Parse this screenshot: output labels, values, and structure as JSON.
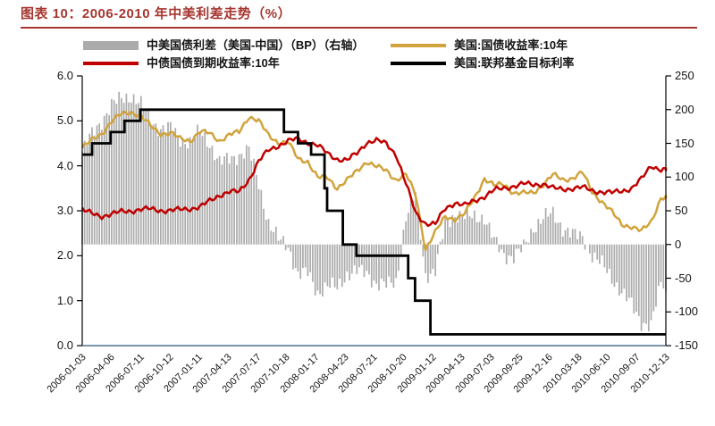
{
  "header": {
    "title": "图表 10：2006-2010 年中美利差走势（%）",
    "accent_color": "#A6362F"
  },
  "legend": [
    {
      "label": "中美国债利差（美国-中国）（BP）（右轴）",
      "type": "bar",
      "color": "#ABABAB"
    },
    {
      "label": "美国:国债收益率:10年",
      "type": "line",
      "color": "#D1A33C"
    },
    {
      "label": "中债国债到期收益率:10年",
      "type": "line",
      "color": "#C00000"
    },
    {
      "label": "美国:联邦基金目标利率",
      "type": "step",
      "color": "#000000"
    }
  ],
  "chart_data": {
    "type": "bar",
    "subtype": "dual-axis combo: bars (right axis, BP) + 3 lines (left axis, %)",
    "title": "2006-2010 年中美利差走势（%）",
    "start_month": "2006-01",
    "interval": "monthly anchors, Jan 2006 - Dec 2010",
    "grid": "off",
    "legend_position": "top",
    "x_tick_labels": [
      "2006-01-03",
      "2006-04-06",
      "2006-07-11",
      "2006-10-12",
      "2007-01-11",
      "2007-04-13",
      "2007-07-17",
      "2007-10-18",
      "2008-01-17",
      "2008-04-23",
      "2008-07-21",
      "2008-10-20",
      "2009-01-12",
      "2009-04-13",
      "2009-07-03",
      "2009-09-25",
      "2009-12-16",
      "2010-03-18",
      "2010-06-10",
      "2010-09-07",
      "2010-12-13"
    ],
    "left_axis": {
      "min": 0,
      "max": 6,
      "ticks": [
        "0.0",
        "1.0",
        "2.0",
        "3.0",
        "4.0",
        "5.0",
        "6.0"
      ]
    },
    "right_axis": {
      "min": -150,
      "max": 250,
      "ticks": [
        "250",
        "200",
        "150",
        "100",
        "50",
        "0",
        "-50",
        "-100",
        "-150"
      ]
    },
    "baseline_color": "#4F7291",
    "series": [
      {
        "name": "中美国债利差（美国-中国）（BP）（右轴）",
        "type": "bar",
        "axis": "right",
        "color": "#ABABAB",
        "monthly_values_bp": [
          137,
          164,
          184,
          206,
          217,
          220,
          207,
          184,
          171,
          173,
          157,
          151,
          168,
          150,
          121,
          127,
          133,
          140,
          90,
          32,
          7,
          -2,
          -45,
          -42,
          -71,
          -62,
          -64,
          -44,
          -40,
          -42,
          -58,
          -61,
          -55,
          40,
          75,
          -45,
          -40,
          30,
          45,
          40,
          42,
          40,
          5,
          -15,
          -18,
          -5,
          25,
          40,
          45,
          25,
          15,
          10,
          -15,
          -30,
          -50,
          -70,
          -90,
          -115,
          -120,
          -58
        ]
      },
      {
        "name": "美国:国债收益率:10年",
        "type": "line",
        "axis": "left",
        "color": "#D1A33C",
        "monthly_values_pct": [
          4.4,
          4.57,
          4.72,
          4.99,
          5.15,
          5.2,
          5.1,
          4.88,
          4.72,
          4.73,
          4.6,
          4.56,
          4.76,
          4.72,
          4.56,
          4.69,
          4.75,
          5.1,
          5.0,
          4.67,
          4.52,
          4.53,
          4.15,
          4.1,
          3.74,
          3.74,
          3.51,
          3.68,
          3.88,
          4.1,
          3.98,
          3.89,
          3.69,
          3.81,
          3.35,
          2.15,
          2.52,
          2.87,
          2.82,
          2.93,
          3.29,
          3.72,
          3.56,
          3.59,
          3.4,
          3.39,
          3.4,
          3.59,
          3.8,
          3.69,
          3.73,
          3.85,
          3.42,
          3.2,
          2.97,
          2.7,
          2.65,
          2.54,
          2.76,
          3.29
        ]
      },
      {
        "name": "中债国债到期收益率:10年",
        "type": "line",
        "axis": "left",
        "color": "#C00000",
        "monthly_values_pct": [
          3.03,
          2.93,
          2.88,
          2.93,
          2.98,
          3.0,
          3.03,
          3.04,
          3.01,
          3.0,
          3.03,
          3.05,
          3.08,
          3.22,
          3.35,
          3.42,
          3.42,
          3.7,
          4.1,
          4.35,
          4.45,
          4.55,
          4.6,
          4.52,
          4.45,
          4.28,
          4.15,
          4.12,
          4.28,
          4.52,
          4.56,
          4.5,
          4.25,
          3.6,
          2.95,
          2.72,
          2.7,
          3.05,
          3.18,
          3.12,
          3.22,
          3.32,
          3.46,
          3.5,
          3.55,
          3.6,
          3.58,
          3.6,
          3.5,
          3.48,
          3.5,
          3.52,
          3.45,
          3.42,
          3.4,
          3.44,
          3.5,
          3.7,
          4.0,
          3.92
        ]
      },
      {
        "name": "美国:联邦基金目标利率",
        "type": "step",
        "axis": "left",
        "color": "#000000",
        "changes": [
          {
            "date": "2006-01-03",
            "rate": 4.25
          },
          {
            "date": "2006-01-31",
            "rate": 4.5
          },
          {
            "date": "2006-03-28",
            "rate": 4.75
          },
          {
            "date": "2006-05-10",
            "rate": 5.0
          },
          {
            "date": "2006-06-29",
            "rate": 5.25
          },
          {
            "date": "2007-09-18",
            "rate": 4.75
          },
          {
            "date": "2007-10-31",
            "rate": 4.5
          },
          {
            "date": "2007-12-11",
            "rate": 4.25
          },
          {
            "date": "2008-01-22",
            "rate": 3.5
          },
          {
            "date": "2008-01-30",
            "rate": 3.0
          },
          {
            "date": "2008-03-18",
            "rate": 2.25
          },
          {
            "date": "2008-04-30",
            "rate": 2.0
          },
          {
            "date": "2008-10-08",
            "rate": 1.5
          },
          {
            "date": "2008-10-29",
            "rate": 1.0
          },
          {
            "date": "2008-12-16",
            "rate": 0.25
          }
        ]
      }
    ]
  }
}
